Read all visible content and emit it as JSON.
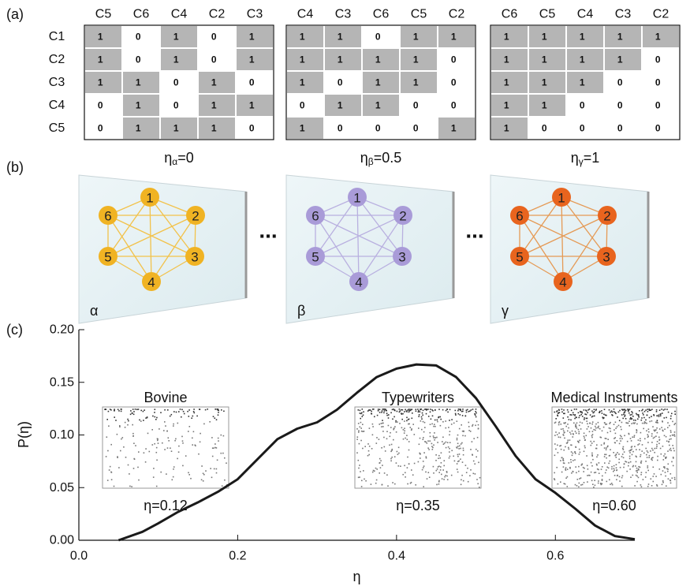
{
  "panel_labels": [
    "(a)",
    "(b)",
    "(c)"
  ],
  "row_labels": [
    "C1",
    "C2",
    "C3",
    "C4",
    "C5"
  ],
  "matrices": [
    {
      "columns": [
        "C5",
        "C6",
        "C4",
        "C2",
        "C3"
      ],
      "rows": [
        [
          1,
          0,
          1,
          0,
          1
        ],
        [
          1,
          0,
          1,
          0,
          1
        ],
        [
          1,
          1,
          0,
          1,
          0
        ],
        [
          0,
          1,
          0,
          1,
          1
        ],
        [
          0,
          1,
          1,
          1,
          0
        ]
      ],
      "title": {
        "symbol": "η",
        "subscript": "α",
        "text": "=0"
      }
    },
    {
      "columns": [
        "C4",
        "C3",
        "C6",
        "C5",
        "C2"
      ],
      "rows": [
        [
          1,
          1,
          0,
          1,
          1
        ],
        [
          1,
          1,
          1,
          1,
          0
        ],
        [
          1,
          0,
          1,
          1,
          0
        ],
        [
          0,
          1,
          1,
          0,
          0
        ],
        [
          1,
          0,
          0,
          0,
          1
        ]
      ],
      "title": {
        "symbol": "η",
        "subscript": "β",
        "text": "=0.5"
      }
    },
    {
      "columns": [
        "C6",
        "C5",
        "C4",
        "C3",
        "C2"
      ],
      "rows": [
        [
          1,
          1,
          1,
          1,
          1
        ],
        [
          1,
          1,
          1,
          1,
          0
        ],
        [
          1,
          1,
          1,
          0,
          0
        ],
        [
          1,
          1,
          0,
          0,
          0
        ],
        [
          1,
          0,
          0,
          0,
          0
        ]
      ],
      "title": {
        "symbol": "η",
        "subscript": "γ",
        "text": "=1"
      }
    }
  ],
  "networks": [
    {
      "nodes": [
        "1",
        "2",
        "3",
        "4",
        "5",
        "6"
      ],
      "letter": "α",
      "color": "#f0b323",
      "edge_color": "#f2c24a"
    },
    {
      "nodes": [
        "1",
        "2",
        "3",
        "4",
        "5",
        "6"
      ],
      "letter": "β",
      "color": "#a99bd8",
      "edge_color": "#b9b0e0"
    },
    {
      "nodes": [
        "1",
        "2",
        "3",
        "4",
        "5",
        "6"
      ],
      "letter": "γ",
      "color": "#e8641e",
      "edge_color": "#e59a55"
    }
  ],
  "separators": [
    "...",
    "..."
  ],
  "chart_data": {
    "type": "line",
    "x_label": "η",
    "y_label": "P(η)",
    "x": [
      0.05,
      0.08,
      0.1,
      0.125,
      0.15,
      0.175,
      0.2,
      0.225,
      0.25,
      0.275,
      0.3,
      0.325,
      0.35,
      0.375,
      0.4,
      0.425,
      0.45,
      0.475,
      0.5,
      0.525,
      0.55,
      0.575,
      0.6,
      0.625,
      0.65,
      0.675,
      0.7
    ],
    "values": [
      0,
      0.008,
      0.016,
      0.027,
      0.036,
      0.046,
      0.058,
      0.077,
      0.096,
      0.106,
      0.112,
      0.124,
      0.14,
      0.155,
      0.163,
      0.167,
      0.166,
      0.155,
      0.135,
      0.108,
      0.08,
      0.058,
      0.045,
      0.03,
      0.014,
      0.004,
      0.001
    ],
    "color": "#1a1a1a",
    "xlim": [
      0,
      0.7
    ],
    "ylim": [
      0,
      0.2
    ],
    "xticks": [
      {
        "value": 0,
        "label": "0.0"
      },
      {
        "value": 0.2,
        "label": "0.2"
      },
      {
        "value": 0.4,
        "label": "0.4"
      },
      {
        "value": 0.6,
        "label": "0.6"
      }
    ],
    "yticks": [
      {
        "value": 0,
        "label": "0.00"
      },
      {
        "value": 0.05,
        "label": "0.05"
      },
      {
        "value": 0.1,
        "label": "0.10"
      },
      {
        "value": 0.15,
        "label": "0.15"
      },
      {
        "value": 0.2,
        "label": "0.20"
      }
    ],
    "insets": [
      {
        "title": "Bovine",
        "label": "η=0.12"
      },
      {
        "title": "Typewriters",
        "label": "η=0.35"
      },
      {
        "title": "Medical Instruments",
        "label": "η=0.60"
      }
    ]
  }
}
